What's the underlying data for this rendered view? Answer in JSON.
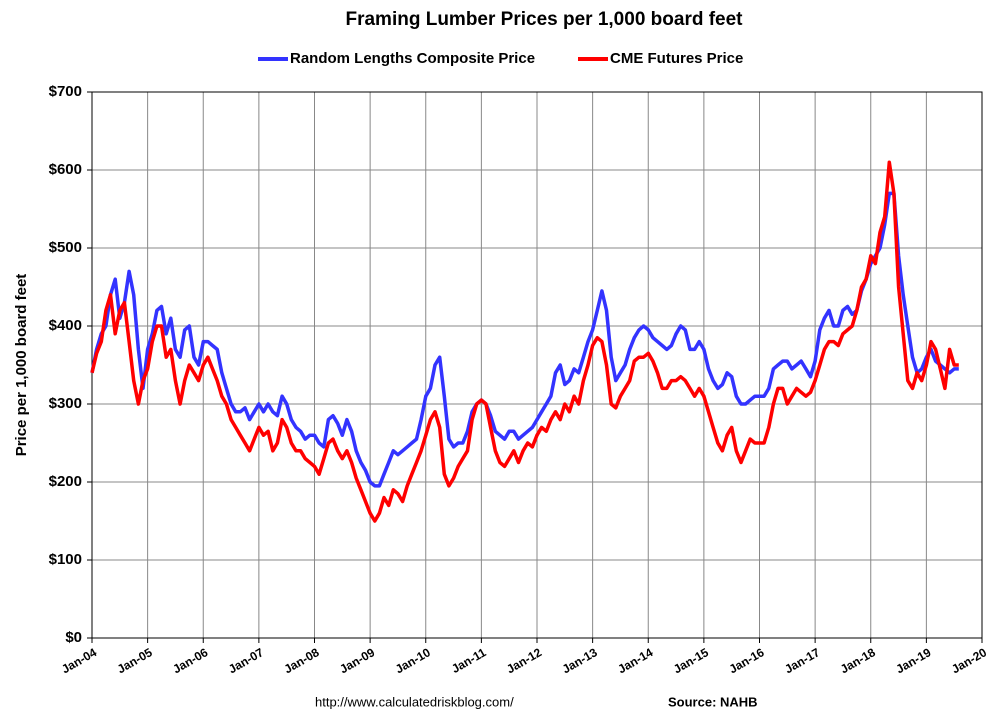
{
  "chart_data": {
    "type": "line",
    "title": "Framing Lumber Prices per 1,000 board feet",
    "ylabel": "Price per 1,000 board feet",
    "notes": [
      "http://www.calculatedriskblog.com/",
      "Source: NAHB"
    ],
    "legend": "top",
    "grid": true,
    "x": [
      "2004-01",
      "2004-02",
      "2004-03",
      "2004-04",
      "2004-05",
      "2004-06",
      "2004-07",
      "2004-08",
      "2004-09",
      "2004-10",
      "2004-11",
      "2004-12",
      "2005-01",
      "2005-02",
      "2005-03",
      "2005-04",
      "2005-05",
      "2005-06",
      "2005-07",
      "2005-08",
      "2005-09",
      "2005-10",
      "2005-11",
      "2005-12",
      "2006-01",
      "2006-02",
      "2006-03",
      "2006-04",
      "2006-05",
      "2006-06",
      "2006-07",
      "2006-08",
      "2006-09",
      "2006-10",
      "2006-11",
      "2006-12",
      "2007-01",
      "2007-02",
      "2007-03",
      "2007-04",
      "2007-05",
      "2007-06",
      "2007-07",
      "2007-08",
      "2007-09",
      "2007-10",
      "2007-11",
      "2007-12",
      "2008-01",
      "2008-02",
      "2008-03",
      "2008-04",
      "2008-05",
      "2008-06",
      "2008-07",
      "2008-08",
      "2008-09",
      "2008-10",
      "2008-11",
      "2008-12",
      "2009-01",
      "2009-02",
      "2009-03",
      "2009-04",
      "2009-05",
      "2009-06",
      "2009-07",
      "2009-08",
      "2009-09",
      "2009-10",
      "2009-11",
      "2009-12",
      "2010-01",
      "2010-02",
      "2010-03",
      "2010-04",
      "2010-05",
      "2010-06",
      "2010-07",
      "2010-08",
      "2010-09",
      "2010-10",
      "2010-11",
      "2010-12",
      "2011-01",
      "2011-02",
      "2011-03",
      "2011-04",
      "2011-05",
      "2011-06",
      "2011-07",
      "2011-08",
      "2011-09",
      "2011-10",
      "2011-11",
      "2011-12",
      "2012-01",
      "2012-02",
      "2012-03",
      "2012-04",
      "2012-05",
      "2012-06",
      "2012-07",
      "2012-08",
      "2012-09",
      "2012-10",
      "2012-11",
      "2012-12",
      "2013-01",
      "2013-02",
      "2013-03",
      "2013-04",
      "2013-05",
      "2013-06",
      "2013-07",
      "2013-08",
      "2013-09",
      "2013-10",
      "2013-11",
      "2013-12",
      "2014-01",
      "2014-02",
      "2014-03",
      "2014-04",
      "2014-05",
      "2014-06",
      "2014-07",
      "2014-08",
      "2014-09",
      "2014-10",
      "2014-11",
      "2014-12",
      "2015-01",
      "2015-02",
      "2015-03",
      "2015-04",
      "2015-05",
      "2015-06",
      "2015-07",
      "2015-08",
      "2015-09",
      "2015-10",
      "2015-11",
      "2015-12",
      "2016-01",
      "2016-02",
      "2016-03",
      "2016-04",
      "2016-05",
      "2016-06",
      "2016-07",
      "2016-08",
      "2016-09",
      "2016-10",
      "2016-11",
      "2016-12",
      "2017-01",
      "2017-02",
      "2017-03",
      "2017-04",
      "2017-05",
      "2017-06",
      "2017-07",
      "2017-08",
      "2017-09",
      "2017-10",
      "2017-11",
      "2017-12",
      "2018-01",
      "2018-02",
      "2018-03",
      "2018-04",
      "2018-05",
      "2018-06",
      "2018-07",
      "2018-08",
      "2018-09",
      "2018-10",
      "2018-11",
      "2018-12",
      "2019-01",
      "2019-02",
      "2019-03",
      "2019-04",
      "2019-05",
      "2019-06",
      "2019-07",
      "2019-08"
    ],
    "series": [
      {
        "name": "Random Lengths Composite Price",
        "color": "#3333ff",
        "values": [
          340,
          370,
          390,
          400,
          440,
          460,
          410,
          430,
          470,
          440,
          370,
          320,
          370,
          390,
          420,
          425,
          390,
          410,
          370,
          360,
          395,
          400,
          360,
          350,
          380,
          380,
          375,
          370,
          340,
          320,
          300,
          290,
          290,
          295,
          280,
          290,
          300,
          290,
          300,
          290,
          285,
          310,
          300,
          280,
          270,
          265,
          255,
          260,
          260,
          250,
          245,
          280,
          285,
          275,
          260,
          280,
          265,
          240,
          225,
          215,
          200,
          195,
          195,
          210,
          225,
          240,
          235,
          240,
          245,
          250,
          255,
          280,
          310,
          320,
          350,
          360,
          310,
          255,
          245,
          250,
          250,
          265,
          290,
          300,
          305,
          300,
          285,
          265,
          260,
          255,
          265,
          265,
          255,
          260,
          265,
          270,
          280,
          290,
          300,
          310,
          340,
          350,
          325,
          330,
          345,
          340,
          360,
          380,
          395,
          420,
          445,
          420,
          360,
          330,
          340,
          350,
          370,
          385,
          395,
          400,
          395,
          385,
          380,
          375,
          370,
          375,
          390,
          400,
          395,
          370,
          370,
          380,
          370,
          345,
          330,
          320,
          325,
          340,
          335,
          310,
          300,
          300,
          305,
          310,
          310,
          310,
          320,
          345,
          350,
          355,
          355,
          345,
          350,
          355,
          345,
          335,
          355,
          395,
          410,
          420,
          400,
          400,
          420,
          425,
          415,
          420,
          445,
          460,
          480,
          490,
          500,
          530,
          570,
          570,
          490,
          440,
          400,
          360,
          340,
          345,
          360,
          370,
          355,
          350,
          345,
          340,
          345,
          345
        ]
      },
      {
        "name": "CME Futures Price",
        "color": "#ff0000",
        "values": [
          340,
          365,
          380,
          420,
          440,
          390,
          420,
          430,
          380,
          330,
          300,
          330,
          345,
          380,
          400,
          400,
          360,
          370,
          330,
          300,
          330,
          350,
          340,
          330,
          350,
          360,
          345,
          330,
          310,
          300,
          280,
          270,
          260,
          250,
          240,
          255,
          270,
          260,
          265,
          240,
          250,
          280,
          270,
          250,
          240,
          240,
          230,
          225,
          220,
          210,
          230,
          250,
          255,
          240,
          230,
          240,
          225,
          205,
          190,
          175,
          160,
          150,
          160,
          180,
          170,
          190,
          185,
          175,
          195,
          210,
          225,
          240,
          260,
          280,
          290,
          270,
          210,
          195,
          205,
          220,
          230,
          240,
          280,
          300,
          305,
          300,
          270,
          240,
          225,
          220,
          230,
          240,
          225,
          240,
          250,
          245,
          260,
          270,
          265,
          280,
          290,
          280,
          300,
          290,
          310,
          300,
          330,
          350,
          375,
          385,
          380,
          350,
          300,
          295,
          310,
          320,
          330,
          355,
          360,
          360,
          365,
          355,
          340,
          320,
          320,
          330,
          330,
          335,
          330,
          320,
          310,
          320,
          310,
          290,
          270,
          250,
          240,
          260,
          270,
          240,
          225,
          240,
          255,
          250,
          250,
          250,
          270,
          300,
          320,
          320,
          300,
          310,
          320,
          315,
          310,
          315,
          330,
          350,
          370,
          380,
          380,
          375,
          390,
          395,
          400,
          420,
          450,
          460,
          490,
          480,
          520,
          540,
          610,
          570,
          450,
          390,
          330,
          320,
          340,
          330,
          350,
          380,
          370,
          345,
          320,
          370,
          350,
          350
        ]
      }
    ],
    "xlim": [
      "2004-01",
      "2020-01"
    ],
    "xticks": [
      {
        "value": "2004-01",
        "label": "Jan-04"
      },
      {
        "value": "2005-01",
        "label": "Jan-05"
      },
      {
        "value": "2006-01",
        "label": "Jan-06"
      },
      {
        "value": "2007-01",
        "label": "Jan-07"
      },
      {
        "value": "2008-01",
        "label": "Jan-08"
      },
      {
        "value": "2009-01",
        "label": "Jan-09"
      },
      {
        "value": "2010-01",
        "label": "Jan-10"
      },
      {
        "value": "2011-01",
        "label": "Jan-11"
      },
      {
        "value": "2012-01",
        "label": "Jan-12"
      },
      {
        "value": "2013-01",
        "label": "Jan-13"
      },
      {
        "value": "2014-01",
        "label": "Jan-14"
      },
      {
        "value": "2015-01",
        "label": "Jan-15"
      },
      {
        "value": "2016-01",
        "label": "Jan-16"
      },
      {
        "value": "2017-01",
        "label": "Jan-17"
      },
      {
        "value": "2018-01",
        "label": "Jan-18"
      },
      {
        "value": "2019-01",
        "label": "Jan-19"
      },
      {
        "value": "2020-01",
        "label": "Jan-20"
      }
    ],
    "ylim": [
      0,
      700
    ],
    "yticks": [
      {
        "value": 0,
        "label": "$0"
      },
      {
        "value": 100,
        "label": "$100"
      },
      {
        "value": 200,
        "label": "$200"
      },
      {
        "value": 300,
        "label": "$300"
      },
      {
        "value": 400,
        "label": "$400"
      },
      {
        "value": 500,
        "label": "$500"
      },
      {
        "value": 600,
        "label": "$600"
      },
      {
        "value": 700,
        "label": "$700"
      }
    ]
  }
}
